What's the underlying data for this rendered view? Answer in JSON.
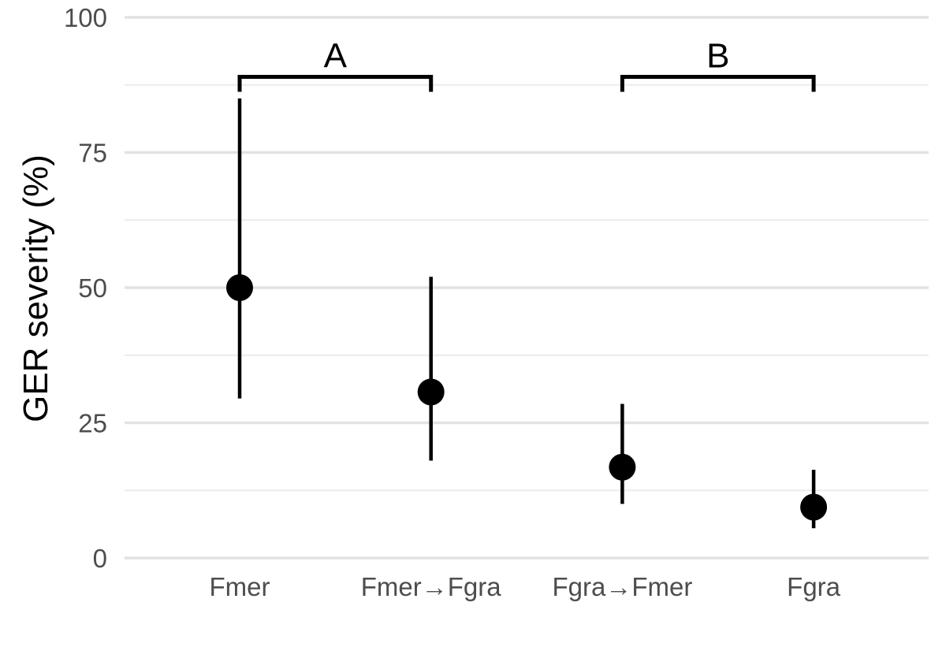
{
  "chart_data": {
    "type": "scatter",
    "title": "",
    "xlabel": "",
    "ylabel": "GER severity (%)",
    "ylim": [
      0,
      100
    ],
    "yticks": [
      0,
      25,
      50,
      75,
      100
    ],
    "grid": true,
    "categories": [
      "Fmer",
      "Fmer→Fgra",
      "Fgra→Fmer",
      "Fgra"
    ],
    "points": [
      {
        "category": "Fmer",
        "value": 50,
        "lower": 29.5,
        "upper": 85
      },
      {
        "category": "Fmer→Fgra",
        "value": 30.7,
        "lower": 18,
        "upper": 52
      },
      {
        "category": "Fgra→Fmer",
        "value": 16.8,
        "lower": 10,
        "upper": 28.5
      },
      {
        "category": "Fgra",
        "value": 9.4,
        "lower": 5.5,
        "upper": 16.3
      }
    ],
    "groups": [
      {
        "label": "A",
        "from": "Fmer",
        "to": "Fmer→Fgra",
        "level": 89
      },
      {
        "label": "B",
        "from": "Fgra→Fmer",
        "to": "Fgra",
        "level": 89
      }
    ],
    "colors": {
      "point": "#000000",
      "major_grid": "#e2e2e2",
      "minor_grid": "#ececec"
    }
  }
}
